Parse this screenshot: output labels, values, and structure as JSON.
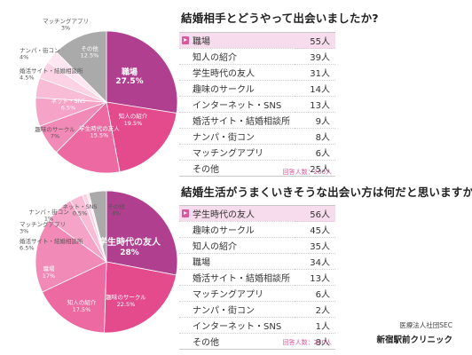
{
  "chart_data": [
    {
      "type": "pie",
      "title": "結婚相手とどうやって出会いましたか?",
      "slices": [
        {
          "label": "職場",
          "value": 27.5,
          "pct_text": "27.5%",
          "color": "#b03f8f",
          "label_color": "#ffffff",
          "big": true
        },
        {
          "label": "知人の紹介",
          "value": 19.5,
          "pct_text": "19.5%",
          "color": "#e44b8d",
          "label_color": "#ffffff"
        },
        {
          "label": "学生時代の友人",
          "value": 15.5,
          "pct_text": "15.5%",
          "color": "#ec6aa1",
          "label_color": "#ffffff"
        },
        {
          "label": "趣味のサークル",
          "value": 7,
          "pct_text": "7%",
          "color": "#f28ab7",
          "label_color": "#555555"
        },
        {
          "label": "ネット・SNS",
          "value": 6.5,
          "pct_text": "6.5%",
          "color": "#f5a3c6",
          "label_color": "#ffffff"
        },
        {
          "label": "婚活サイト・結婚相談所",
          "value": 4.5,
          "pct_text": "4.5%",
          "color": "#f8bcd6",
          "label_color": "#555555"
        },
        {
          "label": "ナンパ・街コン",
          "value": 4,
          "pct_text": "4%",
          "color": "#fbd3e4",
          "label_color": "#555555"
        },
        {
          "label": "マッチングアプリ",
          "value": 3,
          "pct_text": "3%",
          "color": "#fde6ef",
          "label_color": "#555555"
        },
        {
          "label": "その他",
          "value": 12.5,
          "pct_text": "12.5%",
          "color": "#aaaaaa",
          "label_color": "#ffffff"
        }
      ],
      "table": [
        {
          "name": "職場",
          "count": "55人"
        },
        {
          "name": "知人の紹介",
          "count": "39人"
        },
        {
          "name": "学生時代の友人",
          "count": "31人"
        },
        {
          "name": "趣味のサークル",
          "count": "14人"
        },
        {
          "name": "インターネット・SNS",
          "count": "13人"
        },
        {
          "name": "婚活サイト・結婚相談所",
          "count": "9人"
        },
        {
          "name": "ナンパ・街コン",
          "count": "8人"
        },
        {
          "name": "マッチングアプリ",
          "count": "6人"
        },
        {
          "name": "その他",
          "count": "25人"
        }
      ],
      "respondents": "回答人数：200人"
    },
    {
      "type": "pie",
      "title": "結婚生活がうまくいきそうな出会い方は何だと思いますか?",
      "slices": [
        {
          "label": "学生時代の友人",
          "value": 28,
          "pct_text": "28%",
          "color": "#b03f8f",
          "label_color": "#ffffff",
          "big": true
        },
        {
          "label": "趣味のサークル",
          "value": 22.5,
          "pct_text": "22.5%",
          "color": "#e44b8d",
          "label_color": "#ffffff"
        },
        {
          "label": "知人の紹介",
          "value": 17.5,
          "pct_text": "17.5%",
          "color": "#ec6aa1",
          "label_color": "#ffffff"
        },
        {
          "label": "職場",
          "value": 17,
          "pct_text": "17%",
          "color": "#f28ab7",
          "label_color": "#ffffff"
        },
        {
          "label": "婚活サイト・結婚相談所",
          "value": 6.5,
          "pct_text": "6.5%",
          "color": "#f5a3c6",
          "label_color": "#555555"
        },
        {
          "label": "マッチングアプリ",
          "value": 3,
          "pct_text": "3%",
          "color": "#f8bcd6",
          "label_color": "#555555"
        },
        {
          "label": "ナンパ・街コン",
          "value": 1,
          "pct_text": "1%",
          "color": "#fbd3e4",
          "label_color": "#555555"
        },
        {
          "label": "ネット・SNS",
          "value": 0.5,
          "pct_text": "0.5%",
          "color": "#fde6ef",
          "label_color": "#555555"
        },
        {
          "label": "その他",
          "value": 4,
          "pct_text": "4%",
          "color": "#aaaaaa",
          "label_color": "#555555"
        }
      ],
      "table": [
        {
          "name": "学生時代の友人",
          "count": "56人"
        },
        {
          "name": "趣味のサークル",
          "count": "45人"
        },
        {
          "name": "知人の紹介",
          "count": "35人"
        },
        {
          "name": "職場",
          "count": "34人"
        },
        {
          "name": "婚活サイト・結婚相談所",
          "count": "13人"
        },
        {
          "name": "マッチングアプリ",
          "count": "6人"
        },
        {
          "name": "ナンパ・街コン",
          "count": "2人"
        },
        {
          "name": "インターネット・SNS",
          "count": "1人"
        },
        {
          "name": "その他",
          "count": "8人"
        }
      ],
      "respondents": "回答人数：200人"
    }
  ],
  "credit": {
    "org": "医療法人社団SEC",
    "clinic": "新宿駅前クリニック"
  }
}
